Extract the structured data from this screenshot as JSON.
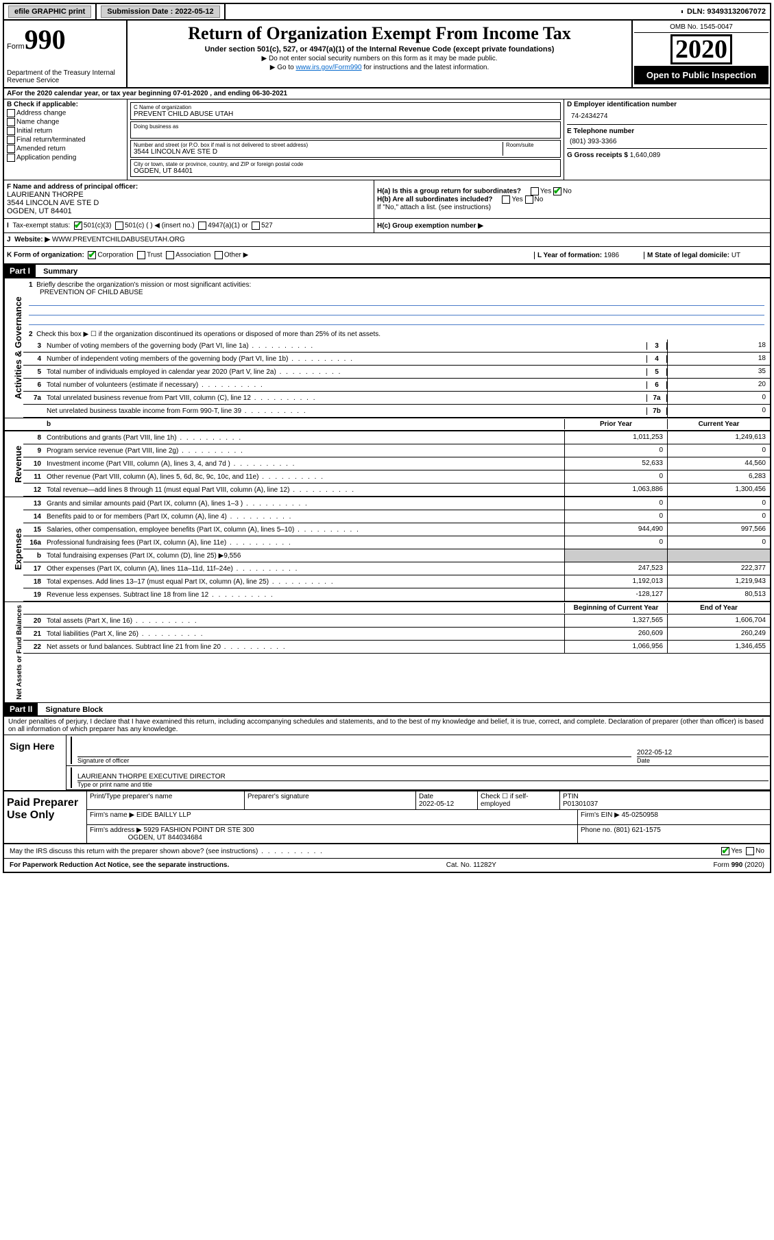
{
  "topbar": {
    "efile": "efile GRAPHIC print",
    "submission_label": "Submission Date : 2022-05-12",
    "dln_label": "DLN: 93493132067072"
  },
  "header": {
    "form_label": "Form",
    "form_num": "990",
    "dept": "Department of the Treasury Internal Revenue Service",
    "title": "Return of Organization Exempt From Income Tax",
    "subtitle": "Under section 501(c), 527, or 4947(a)(1) of the Internal Revenue Code (except private foundations)",
    "line1": "▶ Do not enter social security numbers on this form as it may be made public.",
    "line2_pre": "▶ Go to ",
    "line2_link": "www.irs.gov/Form990",
    "line2_post": " for instructions and the latest information.",
    "omb": "OMB No. 1545-0047",
    "year": "2020",
    "open": "Open to Public Inspection"
  },
  "section_a": {
    "tax_year": "For the 2020 calendar year, or tax year beginning 07-01-2020   , and ending 06-30-2021",
    "b_label": "B Check if applicable:",
    "b_items": [
      "Address change",
      "Name change",
      "Initial return",
      "Final return/terminated",
      "Amended return",
      "Application pending"
    ],
    "c_label": "C Name of organization",
    "org_name": "PREVENT CHILD ABUSE UTAH",
    "dba_label": "Doing business as",
    "street_label": "Number and street (or P.O. box if mail is not delivered to street address)",
    "street": "3544 LINCOLN AVE STE D",
    "room_label": "Room/suite",
    "city_label": "City or town, state or province, country, and ZIP or foreign postal code",
    "city": "OGDEN, UT  84401",
    "d_label": "D Employer identification number",
    "ein": "74-2434274",
    "e_label": "E Telephone number",
    "phone": "(801) 393-3366",
    "g_label": "G Gross receipts $",
    "g_amount": "1,640,089",
    "f_label": "F  Name and address of principal officer:",
    "officer_name": "LAURIEANN THORPE",
    "officer_addr1": "3544 LINCOLN AVE STE D",
    "officer_addr2": "OGDEN, UT  84401",
    "ha_label": "H(a)  Is this a group return for subordinates?",
    "hb_label": "H(b)  Are all subordinates included?",
    "hb_note": "If \"No,\" attach a list. (see instructions)",
    "hc_label": "H(c)  Group exemption number ▶",
    "i_label": "Tax-exempt status:",
    "i_501c3": "501(c)(3)",
    "i_501c": "501(c) (  ) ◀ (insert no.)",
    "i_4947": "4947(a)(1) or",
    "i_527": "527",
    "j_label": "Website: ▶",
    "website": "WWW.PREVENTCHILDABUSEUTAH.ORG",
    "k_label": "K Form of organization:",
    "k_corp": "Corporation",
    "k_trust": "Trust",
    "k_assoc": "Association",
    "k_other": "Other ▶",
    "l_label": "L Year of formation:",
    "l_year": "1986",
    "m_label": "M State of legal domicile:",
    "m_state": "UT"
  },
  "part1": {
    "header": "Part I",
    "title": "Summary",
    "line1": "Briefly describe the organization's mission or most significant activities:",
    "mission": "PREVENTION OF CHILD ABUSE",
    "line2": "Check this box ▶ ☐  if the organization discontinued its operations or disposed of more than 25% of its net assets.",
    "rows_single": [
      {
        "n": "3",
        "d": "Number of voting members of the governing body (Part VI, line 1a)",
        "l": "3",
        "v": "18"
      },
      {
        "n": "4",
        "d": "Number of independent voting members of the governing body (Part VI, line 1b)",
        "l": "4",
        "v": "18"
      },
      {
        "n": "5",
        "d": "Total number of individuals employed in calendar year 2020 (Part V, line 2a)",
        "l": "5",
        "v": "35"
      },
      {
        "n": "6",
        "d": "Total number of volunteers (estimate if necessary)",
        "l": "6",
        "v": "20"
      },
      {
        "n": "7a",
        "d": "Total unrelated business revenue from Part VIII, column (C), line 12",
        "l": "7a",
        "v": "0"
      },
      {
        "n": "",
        "d": "Net unrelated business taxable income from Form 990-T, line 39",
        "l": "7b",
        "v": "0"
      }
    ],
    "prior_head": "Prior Year",
    "current_head": "Current Year",
    "revenue": [
      {
        "n": "8",
        "d": "Contributions and grants (Part VIII, line 1h)",
        "p": "1,011,253",
        "c": "1,249,613"
      },
      {
        "n": "9",
        "d": "Program service revenue (Part VIII, line 2g)",
        "p": "0",
        "c": "0"
      },
      {
        "n": "10",
        "d": "Investment income (Part VIII, column (A), lines 3, 4, and 7d )",
        "p": "52,633",
        "c": "44,560"
      },
      {
        "n": "11",
        "d": "Other revenue (Part VIII, column (A), lines 5, 6d, 8c, 9c, 10c, and 11e)",
        "p": "0",
        "c": "6,283"
      },
      {
        "n": "12",
        "d": "Total revenue—add lines 8 through 11 (must equal Part VIII, column (A), line 12)",
        "p": "1,063,886",
        "c": "1,300,456"
      }
    ],
    "expenses": [
      {
        "n": "13",
        "d": "Grants and similar amounts paid (Part IX, column (A), lines 1–3 )",
        "p": "0",
        "c": "0"
      },
      {
        "n": "14",
        "d": "Benefits paid to or for members (Part IX, column (A), line 4)",
        "p": "0",
        "c": "0"
      },
      {
        "n": "15",
        "d": "Salaries, other compensation, employee benefits (Part IX, column (A), lines 5–10)",
        "p": "944,490",
        "c": "997,566"
      },
      {
        "n": "16a",
        "d": "Professional fundraising fees (Part IX, column (A), line 11e)",
        "p": "0",
        "c": "0"
      }
    ],
    "line_b": "Total fundraising expenses (Part IX, column (D), line 25) ▶9,556",
    "expenses2": [
      {
        "n": "17",
        "d": "Other expenses (Part IX, column (A), lines 11a–11d, 11f–24e)",
        "p": "247,523",
        "c": "222,377"
      },
      {
        "n": "18",
        "d": "Total expenses. Add lines 13–17 (must equal Part IX, column (A), line 25)",
        "p": "1,192,013",
        "c": "1,219,943"
      },
      {
        "n": "19",
        "d": "Revenue less expenses. Subtract line 18 from line 12",
        "p": "-128,127",
        "c": "80,513"
      }
    ],
    "bcy_head": "Beginning of Current Year",
    "eoy_head": "End of Year",
    "netassets": [
      {
        "n": "20",
        "d": "Total assets (Part X, line 16)",
        "p": "1,327,565",
        "c": "1,606,704"
      },
      {
        "n": "21",
        "d": "Total liabilities (Part X, line 26)",
        "p": "260,609",
        "c": "260,249"
      },
      {
        "n": "22",
        "d": "Net assets or fund balances. Subtract line 21 from line 20",
        "p": "1,066,956",
        "c": "1,346,455"
      }
    ],
    "vert_gov": "Activities & Governance",
    "vert_rev": "Revenue",
    "vert_exp": "Expenses",
    "vert_net": "Net Assets or Fund Balances"
  },
  "part2": {
    "header": "Part II",
    "title": "Signature Block",
    "decl": "Under penalties of perjury, I declare that I have examined this return, including accompanying schedules and statements, and to the best of my knowledge and belief, it is true, correct, and complete. Declaration of preparer (other than officer) is based on all information of which preparer has any knowledge.",
    "sign_here": "Sign Here",
    "sig_officer": "Signature of officer",
    "date": "2022-05-12",
    "date_label": "Date",
    "officer_sig": "LAURIEANN THORPE  EXECUTIVE DIRECTOR",
    "type_label": "Type or print name and title",
    "paid": "Paid Preparer Use Only",
    "prep_name_h": "Print/Type preparer's name",
    "prep_sig_h": "Preparer's signature",
    "prep_date_h": "Date",
    "prep_date": "2022-05-12",
    "prep_check": "Check ☐ if self-employed",
    "ptin_h": "PTIN",
    "ptin": "P01301037",
    "firm_name_l": "Firm's name    ▶",
    "firm_name": "EIDE BAILLY LLP",
    "firm_ein_l": "Firm's EIN ▶",
    "firm_ein": "45-0250958",
    "firm_addr_l": "Firm's address ▶",
    "firm_addr1": "5929 FASHION POINT DR STE 300",
    "firm_addr2": "OGDEN, UT  844034684",
    "phone_l": "Phone no.",
    "phone": "(801) 621-1575",
    "discuss": "May the IRS discuss this return with the preparer shown above? (see instructions)",
    "yes": "Yes",
    "no": "No"
  },
  "footer": {
    "left": "For Paperwork Reduction Act Notice, see the separate instructions.",
    "mid": "Cat. No. 11282Y",
    "right": "Form 990 (2020)"
  }
}
